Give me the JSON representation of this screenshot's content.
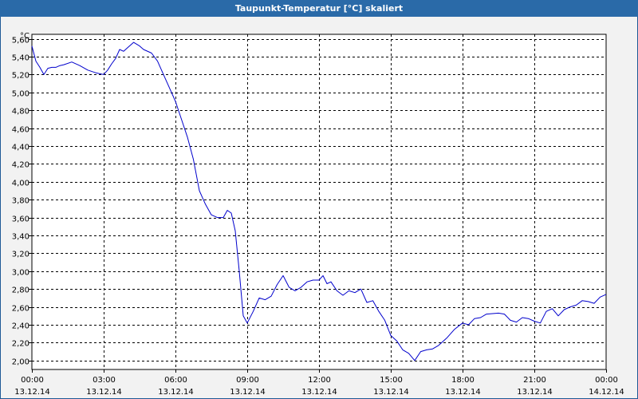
{
  "chart_data": {
    "type": "line",
    "title": "Taupunkt-Temperatur [°C] skaliert",
    "y_unit_label": "°C",
    "xlabel": "",
    "ylabel": "",
    "ylim": [
      1.9,
      5.65
    ],
    "xlim": [
      "13.12.14 00:00",
      "14.12.14 00:00"
    ],
    "grid": true,
    "legend": "none",
    "line_color": "#0000cc",
    "y_ticks": [
      {
        "value": 5.6,
        "label": "5,60"
      },
      {
        "value": 5.4,
        "label": "5,40"
      },
      {
        "value": 5.2,
        "label": "5,20"
      },
      {
        "value": 5.0,
        "label": "5,00"
      },
      {
        "value": 4.8,
        "label": "4,80"
      },
      {
        "value": 4.6,
        "label": "4,60"
      },
      {
        "value": 4.4,
        "label": "4,40"
      },
      {
        "value": 4.2,
        "label": "4,20"
      },
      {
        "value": 4.0,
        "label": "4,00"
      },
      {
        "value": 3.8,
        "label": "3,80"
      },
      {
        "value": 3.6,
        "label": "3,60"
      },
      {
        "value": 3.4,
        "label": "3,40"
      },
      {
        "value": 3.2,
        "label": "3,20"
      },
      {
        "value": 3.0,
        "label": "3,00"
      },
      {
        "value": 2.8,
        "label": "2,80"
      },
      {
        "value": 2.6,
        "label": "2,60"
      },
      {
        "value": 2.4,
        "label": "2,40"
      },
      {
        "value": 2.2,
        "label": "2,20"
      },
      {
        "value": 2.0,
        "label": "2,00"
      }
    ],
    "x_ticks": [
      {
        "time": "13.12.14 00:00",
        "label_time": "00:00",
        "label_date": "13.12.14"
      },
      {
        "time": "13.12.14 03:00",
        "label_time": "03:00",
        "label_date": "13.12.14"
      },
      {
        "time": "13.12.14 06:00",
        "label_time": "06:00",
        "label_date": "13.12.14"
      },
      {
        "time": "13.12.14 09:00",
        "label_time": "09:00",
        "label_date": "13.12.14"
      },
      {
        "time": "13.12.14 12:00",
        "label_time": "12:00",
        "label_date": "13.12.14"
      },
      {
        "time": "13.12.14 15:00",
        "label_time": "15:00",
        "label_date": "13.12.14"
      },
      {
        "time": "13.12.14 18:00",
        "label_time": "18:00",
        "label_date": "13.12.14"
      },
      {
        "time": "13.12.14 21:00",
        "label_time": "21:00",
        "label_date": "13.12.14"
      },
      {
        "time": "14.12.14 00:00",
        "label_time": "00:00",
        "label_date": "14.12.14"
      }
    ],
    "series": [
      {
        "values": [
          [
            "13.12.14 00:00",
            5.52
          ],
          [
            "13.12.14 00:10",
            5.35
          ],
          [
            "13.12.14 00:20",
            5.28
          ],
          [
            "13.12.14 00:30",
            5.2
          ],
          [
            "13.12.14 00:40",
            5.27
          ],
          [
            "13.12.14 00:50",
            5.28
          ],
          [
            "13.12.14 01:00",
            5.28
          ],
          [
            "13.12.14 01:10",
            5.3
          ],
          [
            "13.12.14 01:20",
            5.31
          ],
          [
            "13.12.14 01:40",
            5.34
          ],
          [
            "13.12.14 02:00",
            5.3
          ],
          [
            "13.12.14 02:20",
            5.25
          ],
          [
            "13.12.14 02:40",
            5.22
          ],
          [
            "13.12.14 03:00",
            5.2
          ],
          [
            "13.12.14 03:10",
            5.25
          ],
          [
            "13.12.14 03:20",
            5.32
          ],
          [
            "13.12.14 03:30",
            5.38
          ],
          [
            "13.12.14 03:40",
            5.48
          ],
          [
            "13.12.14 03:50",
            5.46
          ],
          [
            "13.12.14 04:00",
            5.5
          ],
          [
            "13.12.14 04:15",
            5.56
          ],
          [
            "13.12.14 04:30",
            5.52
          ],
          [
            "13.12.14 04:40",
            5.48
          ],
          [
            "13.12.14 05:00",
            5.44
          ],
          [
            "13.12.14 05:15",
            5.35
          ],
          [
            "13.12.14 05:30",
            5.2
          ],
          [
            "13.12.14 05:45",
            5.05
          ],
          [
            "13.12.14 06:00",
            4.9
          ],
          [
            "13.12.14 06:15",
            4.7
          ],
          [
            "13.12.14 06:30",
            4.5
          ],
          [
            "13.12.14 06:45",
            4.25
          ],
          [
            "13.12.14 07:00",
            3.9
          ],
          [
            "13.12.14 07:15",
            3.75
          ],
          [
            "13.12.14 07:30",
            3.63
          ],
          [
            "13.12.14 07:45",
            3.6
          ],
          [
            "13.12.14 08:00",
            3.6
          ],
          [
            "13.12.14 08:10",
            3.68
          ],
          [
            "13.12.14 08:20",
            3.65
          ],
          [
            "13.12.14 08:30",
            3.45
          ],
          [
            "13.12.14 08:40",
            3.0
          ],
          [
            "13.12.14 08:50",
            2.5
          ],
          [
            "13.12.14 09:00",
            2.42
          ],
          [
            "13.12.14 09:15",
            2.55
          ],
          [
            "13.12.14 09:30",
            2.7
          ],
          [
            "13.12.14 09:45",
            2.68
          ],
          [
            "13.12.14 10:00",
            2.72
          ],
          [
            "13.12.14 10:15",
            2.85
          ],
          [
            "13.12.14 10:30",
            2.95
          ],
          [
            "13.12.14 10:45",
            2.82
          ],
          [
            "13.12.14 11:00",
            2.78
          ],
          [
            "13.12.14 11:15",
            2.82
          ],
          [
            "13.12.14 11:30",
            2.88
          ],
          [
            "13.12.14 11:45",
            2.9
          ],
          [
            "13.12.14 12:00",
            2.9
          ],
          [
            "13.12.14 12:10",
            2.95
          ],
          [
            "13.12.14 12:20",
            2.86
          ],
          [
            "13.12.14 12:30",
            2.88
          ],
          [
            "13.12.14 12:45",
            2.78
          ],
          [
            "13.12.14 13:00",
            2.73
          ],
          [
            "13.12.14 13:15",
            2.78
          ],
          [
            "13.12.14 13:30",
            2.76
          ],
          [
            "13.12.14 13:45",
            2.8
          ],
          [
            "13.12.14 14:00",
            2.65
          ],
          [
            "13.12.14 14:15",
            2.67
          ],
          [
            "13.12.14 14:30",
            2.55
          ],
          [
            "13.12.14 14:45",
            2.45
          ],
          [
            "13.12.14 15:00",
            2.28
          ],
          [
            "13.12.14 15:15",
            2.22
          ],
          [
            "13.12.14 15:30",
            2.12
          ],
          [
            "13.12.14 15:45",
            2.08
          ],
          [
            "13.12.14 16:00",
            2.0
          ],
          [
            "13.12.14 16:15",
            2.1
          ],
          [
            "13.12.14 16:30",
            2.12
          ],
          [
            "13.12.14 16:45",
            2.13
          ],
          [
            "13.12.14 17:00",
            2.17
          ],
          [
            "13.12.14 17:20",
            2.25
          ],
          [
            "13.12.14 17:40",
            2.35
          ],
          [
            "13.12.14 18:00",
            2.42
          ],
          [
            "13.12.14 18:15",
            2.4
          ],
          [
            "13.12.14 18:30",
            2.47
          ],
          [
            "13.12.14 18:45",
            2.48
          ],
          [
            "13.12.14 19:00",
            2.52
          ],
          [
            "13.12.14 19:30",
            2.53
          ],
          [
            "13.12.14 19:45",
            2.52
          ],
          [
            "13.12.14 20:00",
            2.45
          ],
          [
            "13.12.14 20:15",
            2.43
          ],
          [
            "13.12.14 20:30",
            2.48
          ],
          [
            "13.12.14 20:45",
            2.47
          ],
          [
            "13.12.14 21:00",
            2.44
          ],
          [
            "13.12.14 21:15",
            2.42
          ],
          [
            "13.12.14 21:30",
            2.55
          ],
          [
            "13.12.14 21:45",
            2.58
          ],
          [
            "13.12.14 22:00",
            2.5
          ],
          [
            "13.12.14 22:15",
            2.57
          ],
          [
            "13.12.14 22:30",
            2.6
          ],
          [
            "13.12.14 22:45",
            2.62
          ],
          [
            "13.12.14 23:00",
            2.67
          ],
          [
            "13.12.14 23:15",
            2.66
          ],
          [
            "13.12.14 23:30",
            2.64
          ],
          [
            "13.12.14 23:45",
            2.71
          ],
          [
            "14.12.14 00:00",
            2.74
          ]
        ]
      }
    ]
  }
}
